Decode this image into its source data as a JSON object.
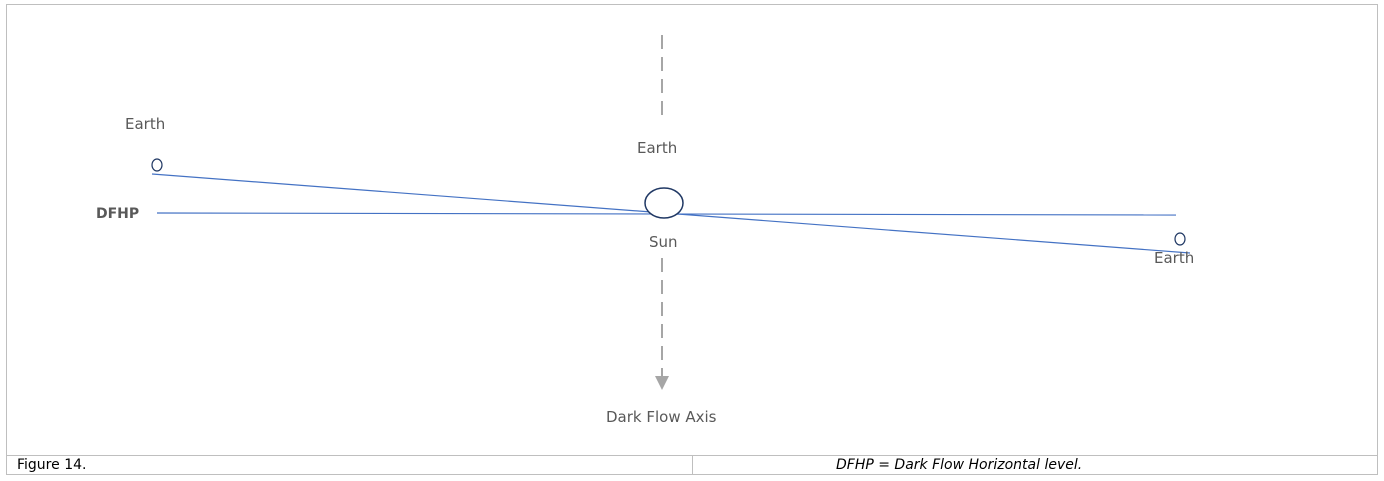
{
  "diagram": {
    "labels": {
      "earth_left": "Earth",
      "earth_top": "Earth",
      "earth_right": "Earth",
      "dfhp": "DFHP",
      "sun": "Sun",
      "dark_flow_axis": "Dark Flow Axis"
    },
    "colors": {
      "line": "#4472c4",
      "axis": "#a6a6a6",
      "text": "#595959",
      "border": "#bfbfbf"
    }
  },
  "caption": {
    "figure": "Figure 14.",
    "definition": "DFHP = Dark Flow Horizontal level."
  }
}
